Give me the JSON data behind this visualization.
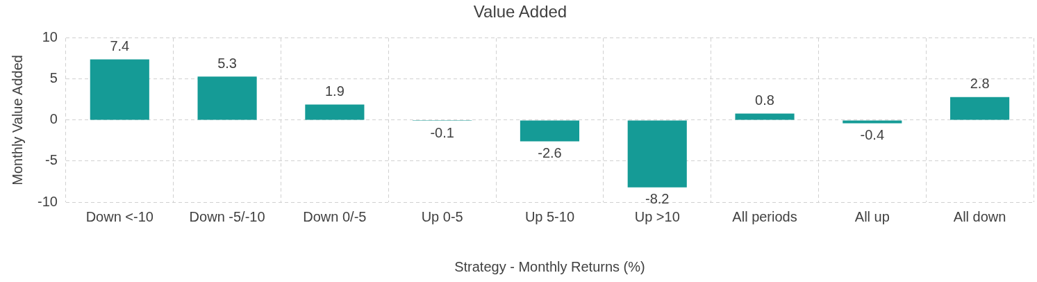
{
  "chart_data": {
    "type": "bar",
    "title": "Value Added",
    "xlabel": "Strategy - Monthly Returns (%)",
    "ylabel": "Monthly Value Added",
    "categories": [
      "Down <-10",
      "Down -5/-10",
      "Down 0/-5",
      "Up 0-5",
      "Up 5-10",
      "Up >10",
      "All periods",
      "All up",
      "All down"
    ],
    "values": [
      7.4,
      5.3,
      1.9,
      -0.1,
      -2.6,
      -8.2,
      0.8,
      -0.4,
      2.8
    ],
    "color": "#159b96",
    "ylim": [
      -10,
      10
    ],
    "yticks": [
      -10,
      -5,
      0,
      5,
      10
    ],
    "grid": true,
    "data_labels": true,
    "legend": false
  }
}
